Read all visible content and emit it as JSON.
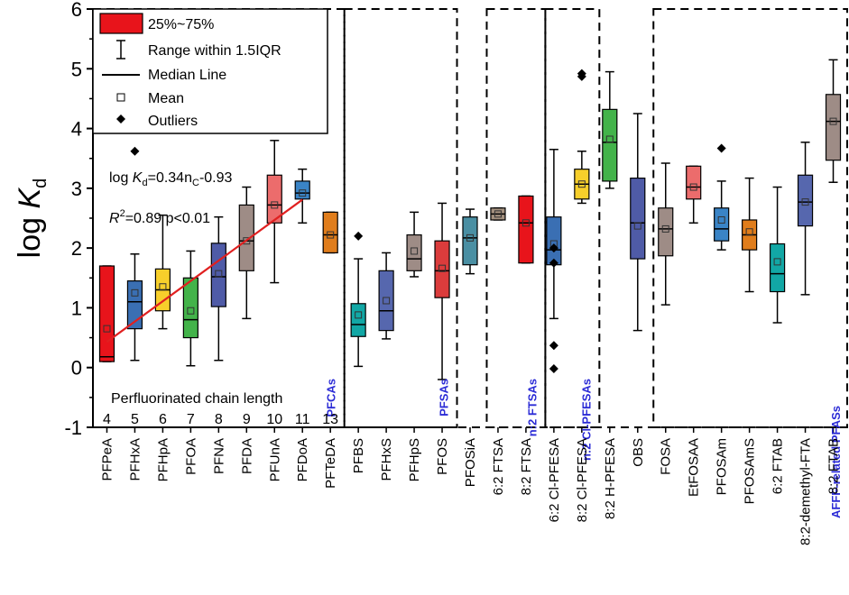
{
  "chart_data": {
    "type": "box",
    "ylabel": "log K",
    "ylabel_sub": "d",
    "ylim": [
      -1,
      6
    ],
    "yticks": [
      "-1",
      "0",
      "1",
      "2",
      "3",
      "4",
      "5",
      "6"
    ],
    "boxes": [
      {
        "name": "PFPeA",
        "color": "#e8141b",
        "q1": 0.1,
        "median": 0.18,
        "q3": 1.7,
        "wlo": 0.1,
        "whi": 1.7,
        "mean": 0.65,
        "outliers": []
      },
      {
        "name": "PFHxA",
        "color": "#3a6fb3",
        "q1": 0.65,
        "median": 1.1,
        "q3": 1.45,
        "wlo": 0.12,
        "whi": 1.9,
        "mean": 1.25,
        "outliers": [
          3.62
        ]
      },
      {
        "name": "PFHpA",
        "color": "#f7cf2b",
        "q1": 0.95,
        "median": 1.3,
        "q3": 1.65,
        "wlo": 0.65,
        "whi": 2.55,
        "mean": 1.35,
        "outliers": []
      },
      {
        "name": "PFOA",
        "color": "#43b34a",
        "q1": 0.5,
        "median": 0.8,
        "q3": 1.5,
        "wlo": 0.03,
        "whi": 1.95,
        "mean": 0.95,
        "outliers": []
      },
      {
        "name": "PFNA",
        "color": "#4f5ba7",
        "q1": 1.02,
        "median": 1.52,
        "q3": 2.08,
        "wlo": 0.12,
        "whi": 2.52,
        "mean": 1.57,
        "outliers": []
      },
      {
        "name": "PFDA",
        "color": "#9e8c86",
        "q1": 1.62,
        "median": 2.12,
        "q3": 2.72,
        "wlo": 0.82,
        "whi": 3.02,
        "mean": 2.12,
        "outliers": []
      },
      {
        "name": "PFUnA",
        "color": "#ec6c6c",
        "q1": 2.42,
        "median": 2.72,
        "q3": 3.22,
        "wlo": 1.42,
        "whi": 3.8,
        "mean": 2.72,
        "outliers": []
      },
      {
        "name": "PFDoA",
        "color": "#3a84c6",
        "q1": 2.82,
        "median": 2.92,
        "q3": 3.12,
        "wlo": 2.42,
        "whi": 3.32,
        "mean": 2.92,
        "outliers": []
      },
      {
        "name": "PFTeDA",
        "color": "#e07d1c",
        "q1": 1.92,
        "median": 2.22,
        "q3": 2.6,
        "wlo": 1.92,
        "whi": 2.6,
        "mean": 2.22,
        "outliers": []
      },
      {
        "name": "PFBS",
        "color": "#12a7a5",
        "q1": 0.52,
        "median": 0.72,
        "q3": 1.07,
        "wlo": 0.02,
        "whi": 1.82,
        "mean": 0.88,
        "outliers": [
          2.2
        ]
      },
      {
        "name": "PFHxS",
        "color": "#5667ae",
        "q1": 0.62,
        "median": 0.95,
        "q3": 1.62,
        "wlo": 0.48,
        "whi": 1.92,
        "mean": 1.12,
        "outliers": []
      },
      {
        "name": "PFHpS",
        "color": "#9e8c86",
        "q1": 1.62,
        "median": 1.82,
        "q3": 2.22,
        "wlo": 1.52,
        "whi": 2.6,
        "mean": 1.95,
        "outliers": []
      },
      {
        "name": "PFOS",
        "color": "#db3c3c",
        "q1": 1.17,
        "median": 1.62,
        "q3": 2.12,
        "wlo": -0.2,
        "whi": 2.75,
        "mean": 1.66,
        "outliers": []
      },
      {
        "name": "PFOSiA",
        "color": "#4a8fa3",
        "q1": 1.72,
        "median": 2.17,
        "q3": 2.52,
        "wlo": 1.57,
        "whi": 2.65,
        "mean": 2.17,
        "outliers": []
      },
      {
        "name": "6:2 FTSA",
        "color": "#a4917f",
        "q1": 2.47,
        "median": 2.57,
        "q3": 2.67,
        "wlo": 2.47,
        "whi": 2.67,
        "mean": 2.57,
        "outliers": []
      },
      {
        "name": "8:2 FTSA",
        "color": "#e8141b",
        "q1": 1.75,
        "median": 2.42,
        "q3": 2.87,
        "wlo": 1.75,
        "whi": 2.87,
        "mean": 2.42,
        "outliers": []
      },
      {
        "name": "6:2 Cl-PFESA",
        "color": "#3a6fb3",
        "q1": 1.72,
        "median": 1.97,
        "q3": 2.52,
        "wlo": 0.82,
        "whi": 3.65,
        "mean": 2.07,
        "outliers": [
          2.0,
          1.75,
          0.37,
          -0.02
        ]
      },
      {
        "name": "8:2 Cl-PFESA",
        "color": "#f7cf2b",
        "q1": 2.82,
        "median": 3.07,
        "q3": 3.32,
        "wlo": 2.75,
        "whi": 3.62,
        "mean": 3.07,
        "outliers": [
          4.92,
          4.87
        ]
      },
      {
        "name": "8:2 H-PFESA",
        "color": "#43b34a",
        "q1": 3.12,
        "median": 3.77,
        "q3": 4.32,
        "wlo": 3.0,
        "whi": 4.95,
        "mean": 3.82,
        "outliers": []
      },
      {
        "name": "OBS",
        "color": "#4f5ba7",
        "q1": 1.82,
        "median": 2.42,
        "q3": 3.17,
        "wlo": 0.62,
        "whi": 4.25,
        "mean": 2.37,
        "outliers": []
      },
      {
        "name": "FOSA",
        "color": "#9e8c86",
        "q1": 1.87,
        "median": 2.32,
        "q3": 2.67,
        "wlo": 1.05,
        "whi": 3.42,
        "mean": 2.32,
        "outliers": []
      },
      {
        "name": "EtFOSAA",
        "color": "#ec6c6c",
        "q1": 2.82,
        "median": 3.02,
        "q3": 3.37,
        "wlo": 2.42,
        "whi": 3.37,
        "mean": 3.02,
        "outliers": []
      },
      {
        "name": "PFOSAm",
        "color": "#3a84c6",
        "q1": 2.12,
        "median": 2.32,
        "q3": 2.67,
        "wlo": 1.97,
        "whi": 3.12,
        "mean": 2.47,
        "outliers": [
          3.67
        ]
      },
      {
        "name": "PFOSAmS",
        "color": "#e07d1c",
        "q1": 1.97,
        "median": 2.22,
        "q3": 2.47,
        "wlo": 1.27,
        "whi": 3.17,
        "mean": 2.27,
        "outliers": []
      },
      {
        "name": "6:2 FTAB",
        "color": "#12a7a5",
        "q1": 1.27,
        "median": 1.57,
        "q3": 2.07,
        "wlo": 0.75,
        "whi": 3.02,
        "mean": 1.77,
        "outliers": []
      },
      {
        "name": "8:2-demethyl-FTA",
        "color": "#5667ae",
        "q1": 2.37,
        "median": 2.77,
        "q3": 3.22,
        "wlo": 1.22,
        "whi": 3.77,
        "mean": 2.77,
        "outliers": []
      },
      {
        "name": "8:2 FTAB",
        "color": "#9e8c86",
        "q1": 3.47,
        "median": 4.12,
        "q3": 4.57,
        "wlo": 3.1,
        "whi": 5.15,
        "mean": 4.12,
        "outliers": []
      }
    ],
    "chain_lengths": [
      "4",
      "5",
      "6",
      "7",
      "8",
      "9",
      "10",
      "11",
      "13"
    ],
    "chain_length_label": "Perfluorinated chain length",
    "regression": {
      "slope": 0.34,
      "intercept": -0.93,
      "x_start": 4,
      "x_end": 11,
      "color": "#e02020"
    },
    "annotations": {
      "equation_prefix": "log ",
      "equation_k": "K",
      "equation_sub": "d",
      "equation_mid": "=0.34n",
      "equation_sub2": "C",
      "equation_suffix": "-0.93",
      "r2_prefix": "R",
      "r2_sup": "2",
      "r2_rest": "=0.89 p<0.01"
    },
    "groups": [
      "PFCAs",
      "PFSAs",
      "n:2 FTSAs",
      "n:2 Cl-PFESAs",
      "AFFF-related PFASs"
    ],
    "legend": {
      "box": "25%~75%",
      "range": "Range within 1.5IQR",
      "median": "Median Line",
      "mean": "Mean",
      "outliers": "Outliers"
    }
  }
}
